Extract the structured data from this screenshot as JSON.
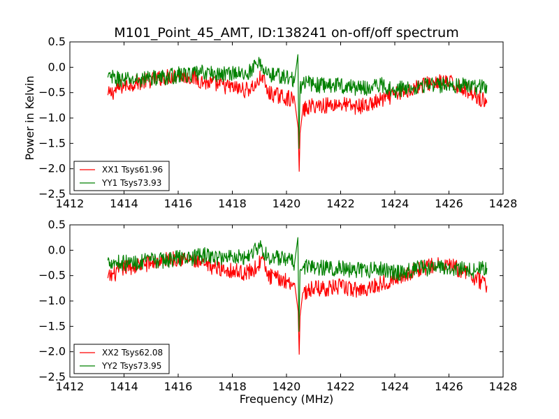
{
  "figure": {
    "title": "M101_Point_45_AMT, ID:138241 on-off/off spectrum",
    "ylabel": "Power in Kelvin",
    "xlabel": "Frequency (MHz)"
  },
  "chart_data": [
    {
      "type": "line",
      "xlim": [
        1412,
        1428
      ],
      "ylim": [
        -2.5,
        0.5
      ],
      "x_ticks": [
        1412,
        1414,
        1416,
        1418,
        1420,
        1422,
        1424,
        1426,
        1428
      ],
      "y_ticks": [
        0.5,
        0.0,
        -0.5,
        -1.0,
        -1.5,
        -2.0,
        -2.5
      ],
      "x_tick_labels": [
        "1412",
        "1414",
        "1416",
        "1418",
        "1420",
        "1422",
        "1424",
        "1426",
        "1428"
      ],
      "y_tick_labels": [
        "0.5",
        "0.0",
        "−0.5",
        "−1.0",
        "−1.5",
        "−2.0",
        "−2.5"
      ],
      "grid": false,
      "legend_position": "lower-left",
      "series": [
        {
          "name": "XX1 Tsys61.96",
          "color": "#ff0000",
          "x": [
            1413.4,
            1414.0,
            1414.5,
            1415.0,
            1415.5,
            1416.0,
            1416.5,
            1417.0,
            1417.5,
            1418.0,
            1418.5,
            1418.9,
            1419.1,
            1419.3,
            1419.6,
            1420.0,
            1420.3,
            1420.43,
            1420.47,
            1420.5,
            1420.6,
            1420.8,
            1421.0,
            1421.5,
            1422.0,
            1422.5,
            1423.0,
            1423.5,
            1424.0,
            1424.5,
            1425.0,
            1425.5,
            1426.0,
            1426.5,
            1427.0,
            1427.4
          ],
          "y": [
            -0.55,
            -0.35,
            -0.3,
            -0.25,
            -0.2,
            -0.15,
            -0.2,
            -0.3,
            -0.35,
            -0.4,
            -0.45,
            -0.35,
            -0.15,
            -0.5,
            -0.55,
            -0.6,
            -0.65,
            -1.2,
            -2.05,
            -1.3,
            -0.85,
            -0.8,
            -0.75,
            -0.75,
            -0.72,
            -0.78,
            -0.75,
            -0.65,
            -0.55,
            -0.45,
            -0.35,
            -0.3,
            -0.3,
            -0.4,
            -0.55,
            -0.7
          ]
        },
        {
          "name": "YY1 Tsys73.93",
          "color": "#008000",
          "x": [
            1413.4,
            1414.0,
            1414.5,
            1415.0,
            1415.5,
            1416.0,
            1416.5,
            1417.0,
            1417.5,
            1418.0,
            1418.5,
            1418.9,
            1419.1,
            1419.3,
            1419.6,
            1420.0,
            1420.3,
            1420.42,
            1420.46,
            1420.5,
            1420.6,
            1420.8,
            1421.0,
            1421.5,
            1422.0,
            1422.5,
            1423.0,
            1423.5,
            1424.0,
            1424.5,
            1425.0,
            1425.5,
            1426.0,
            1426.5,
            1427.0,
            1427.4
          ],
          "y": [
            -0.2,
            -0.25,
            -0.25,
            -0.2,
            -0.2,
            -0.15,
            -0.15,
            -0.1,
            -0.15,
            -0.1,
            -0.15,
            0.05,
            0.05,
            -0.15,
            -0.15,
            -0.2,
            -0.25,
            0.25,
            -1.6,
            -0.4,
            -0.35,
            -0.3,
            -0.35,
            -0.35,
            -0.35,
            -0.4,
            -0.4,
            -0.35,
            -0.45,
            -0.4,
            -0.35,
            -0.35,
            -0.35,
            -0.35,
            -0.4,
            -0.35
          ]
        }
      ]
    },
    {
      "type": "line",
      "xlim": [
        1412,
        1428
      ],
      "ylim": [
        -2.5,
        0.5
      ],
      "x_ticks": [
        1412,
        1414,
        1416,
        1418,
        1420,
        1422,
        1424,
        1426,
        1428
      ],
      "y_ticks": [
        0.5,
        0.0,
        -0.5,
        -1.0,
        -1.5,
        -2.0,
        -2.5
      ],
      "x_tick_labels": [
        "1412",
        "1414",
        "1416",
        "1418",
        "1420",
        "1422",
        "1424",
        "1426",
        "1428"
      ],
      "y_tick_labels": [
        "0.5",
        "0.0",
        "−0.5",
        "−1.0",
        "−1.5",
        "−2.0",
        "−2.5"
      ],
      "grid": false,
      "legend_position": "lower-left",
      "series": [
        {
          "name": "XX2 Tsys62.08",
          "color": "#ff0000",
          "x": [
            1413.4,
            1414.0,
            1414.5,
            1415.0,
            1415.5,
            1416.0,
            1416.5,
            1417.0,
            1417.5,
            1418.0,
            1418.5,
            1418.9,
            1419.1,
            1419.3,
            1419.6,
            1420.0,
            1420.3,
            1420.43,
            1420.47,
            1420.5,
            1420.6,
            1420.8,
            1421.0,
            1421.5,
            1422.0,
            1422.5,
            1423.0,
            1423.5,
            1424.0,
            1424.5,
            1425.0,
            1425.5,
            1426.0,
            1426.5,
            1427.0,
            1427.4
          ],
          "y": [
            -0.55,
            -0.35,
            -0.3,
            -0.25,
            -0.2,
            -0.15,
            -0.2,
            -0.3,
            -0.35,
            -0.4,
            -0.45,
            -0.35,
            -0.15,
            -0.5,
            -0.55,
            -0.6,
            -0.65,
            -1.2,
            -2.05,
            -1.3,
            -0.85,
            -0.8,
            -0.75,
            -0.75,
            -0.72,
            -0.78,
            -0.75,
            -0.65,
            -0.55,
            -0.45,
            -0.35,
            -0.3,
            -0.3,
            -0.4,
            -0.55,
            -0.7
          ]
        },
        {
          "name": "YY2 Tsys73.95",
          "color": "#008000",
          "x": [
            1413.4,
            1414.0,
            1414.5,
            1415.0,
            1415.5,
            1416.0,
            1416.5,
            1417.0,
            1417.5,
            1418.0,
            1418.5,
            1418.9,
            1419.1,
            1419.3,
            1419.6,
            1420.0,
            1420.3,
            1420.42,
            1420.46,
            1420.5,
            1420.6,
            1420.8,
            1421.0,
            1421.5,
            1422.0,
            1422.5,
            1423.0,
            1423.5,
            1424.0,
            1424.5,
            1425.0,
            1425.5,
            1426.0,
            1426.5,
            1427.0,
            1427.4
          ],
          "y": [
            -0.2,
            -0.25,
            -0.25,
            -0.2,
            -0.2,
            -0.15,
            -0.15,
            -0.1,
            -0.15,
            -0.1,
            -0.15,
            0.05,
            0.05,
            -0.15,
            -0.15,
            -0.2,
            -0.25,
            0.25,
            -1.6,
            -0.4,
            -0.35,
            -0.3,
            -0.35,
            -0.35,
            -0.35,
            -0.4,
            -0.4,
            -0.35,
            -0.45,
            -0.4,
            -0.35,
            -0.35,
            -0.35,
            -0.35,
            -0.4,
            -0.35
          ]
        }
      ]
    }
  ]
}
